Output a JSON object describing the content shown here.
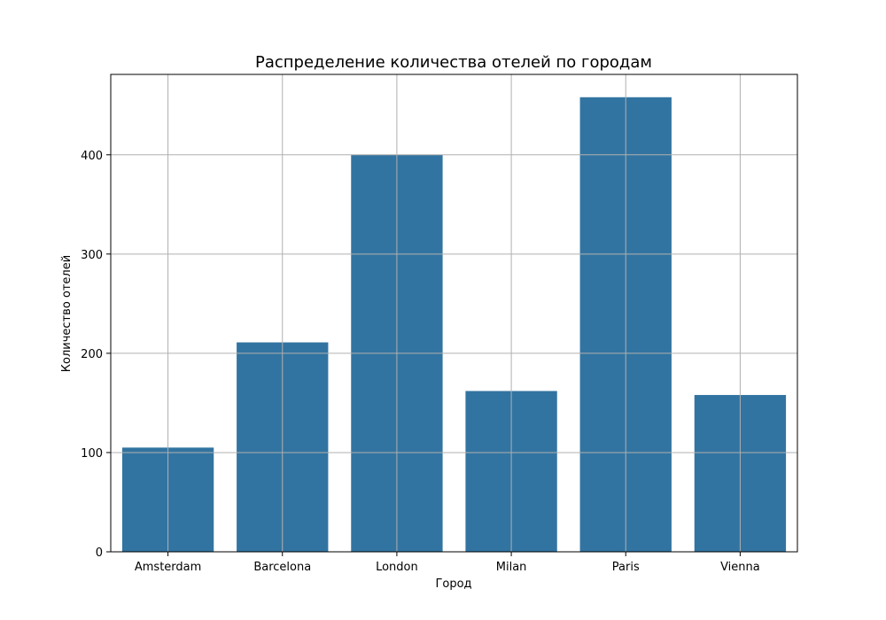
{
  "chart_data": {
    "type": "bar",
    "title": "Распределение количества отелей по городам",
    "xlabel": "Город",
    "ylabel": "Количество отелей",
    "categories": [
      "Amsterdam",
      "Barcelona",
      "London",
      "Milan",
      "Paris",
      "Vienna"
    ],
    "values": [
      105,
      211,
      400,
      162,
      458,
      158
    ],
    "ylim": [
      0,
      481
    ],
    "yticks": [
      0,
      100,
      200,
      300,
      400
    ],
    "grid": true,
    "bar_color": "#3274a1"
  }
}
